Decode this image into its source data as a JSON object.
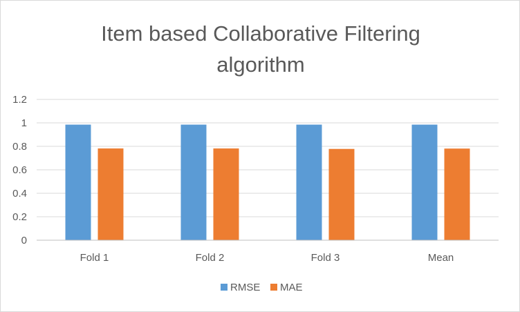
{
  "chart_data": {
    "type": "bar",
    "title_lines": [
      "Item based Collaborative Filtering",
      "algorithm"
    ],
    "categories": [
      "Fold 1",
      "Fold 2",
      "Fold 3",
      "Mean"
    ],
    "series": [
      {
        "name": "RMSE",
        "color": "#5b9bd5",
        "values": [
          0.985,
          0.985,
          0.985,
          0.985
        ]
      },
      {
        "name": "MAE",
        "color": "#ed7d31",
        "values": [
          0.782,
          0.782,
          0.778,
          0.781
        ]
      }
    ],
    "yticks": [
      "0",
      "0.2",
      "0.4",
      "0.6",
      "0.8",
      "1",
      "1.2"
    ],
    "ylim": [
      0,
      1.2
    ],
    "xlabel": "",
    "ylabel": "",
    "grid": true,
    "legend_position": "bottom"
  }
}
